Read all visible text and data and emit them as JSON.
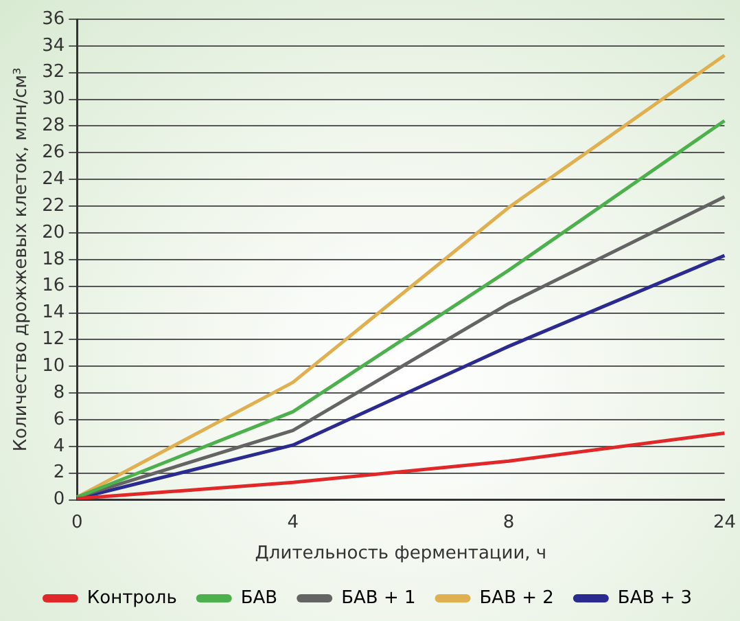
{
  "chart_data": {
    "type": "line",
    "xlabel": "Длительность ферментации, ч",
    "ylabel": "Количество дрожжевых клеток, млн/см³",
    "categories": [
      "0",
      "4",
      "8",
      "24"
    ],
    "series": [
      {
        "name": "Контроль",
        "color": "#e02828",
        "values": [
          0.1,
          1.3,
          2.9,
          5.0
        ]
      },
      {
        "name": "БАВ",
        "color": "#4cb04c",
        "values": [
          0.2,
          6.6,
          17.2,
          28.4
        ]
      },
      {
        "name": "БАВ + 1",
        "color": "#646464",
        "values": [
          0.2,
          5.2,
          14.7,
          22.7
        ]
      },
      {
        "name": "БАВ + 2",
        "color": "#e0b050",
        "values": [
          0.2,
          8.8,
          21.9,
          33.3
        ]
      },
      {
        "name": "БАВ + 3",
        "color": "#2a2a90",
        "values": [
          0.1,
          4.1,
          11.5,
          18.3
        ]
      }
    ],
    "ylim": [
      0,
      36
    ],
    "yticks": [
      0,
      2,
      4,
      6,
      8,
      10,
      12,
      14,
      16,
      18,
      20,
      22,
      24,
      26,
      28,
      30,
      32,
      34,
      36
    ],
    "grid": "y",
    "legend": "bottom",
    "marker": "none",
    "line_style": "solid"
  }
}
